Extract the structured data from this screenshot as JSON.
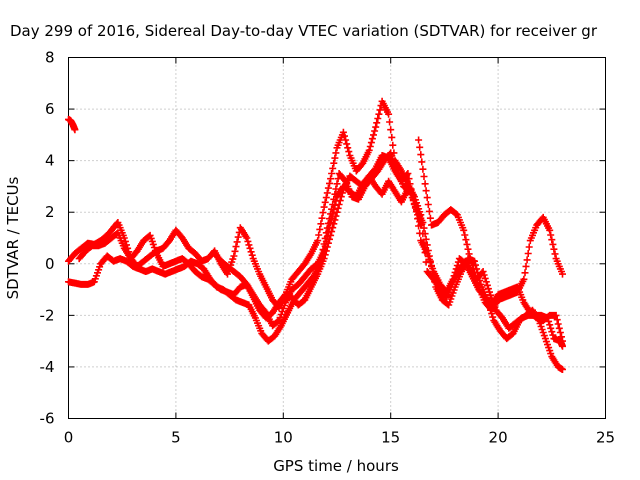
{
  "chart_data": {
    "type": "scatter",
    "title": "Day 299 of 2016, Sidereal Day-to-day VTEC variation (SDTVAR) for receiver gr",
    "xlabel": "GPS time / hours",
    "ylabel": "SDTVAR / TECUs",
    "xlim": [
      0,
      25
    ],
    "ylim": [
      -6,
      8
    ],
    "xticks": [
      0,
      5,
      10,
      15,
      20,
      25
    ],
    "yticks": [
      -6,
      -4,
      -2,
      0,
      2,
      4,
      6,
      8
    ],
    "xtick_labels": [
      "0",
      "5",
      "10",
      "15",
      "20",
      "25"
    ],
    "ytick_labels": [
      "-6",
      "-4",
      "-2",
      "0",
      "2",
      "4",
      "6",
      "8"
    ],
    "grid": true,
    "marker": "+",
    "marker_color": "#ff0000",
    "series": [
      {
        "x": [
          0.0,
          0.1,
          0.2,
          0.3
        ],
        "y": [
          5.6,
          5.55,
          5.4,
          5.2
        ]
      },
      {
        "x": [
          0.0,
          0.3,
          0.6,
          0.9,
          1.2,
          1.5,
          1.8,
          2.1,
          2.3,
          2.6,
          2.9,
          3.2,
          3.5,
          3.8,
          4.1,
          4.4,
          4.7,
          5.0,
          5.3,
          5.6,
          5.9,
          6.2,
          6.5,
          6.8,
          7.1,
          7.4,
          7.7,
          8.0,
          8.3,
          8.6,
          8.9,
          9.2,
          9.5,
          9.8,
          10.1,
          10.4,
          10.7,
          11.0,
          11.3,
          11.6,
          11.9,
          12.2,
          12.5,
          12.8,
          13.1,
          13.4,
          13.7,
          14.0,
          14.3,
          14.6,
          14.9,
          15.2,
          15.5,
          15.8,
          16.1,
          16.4,
          16.7,
          17.0,
          17.3,
          17.6,
          17.9,
          18.2,
          18.5,
          18.8,
          19.1,
          19.4,
          19.7,
          20.0,
          20.3,
          20.6,
          20.9,
          21.2,
          21.5,
          21.8,
          22.1,
          22.4,
          22.7,
          23.0
        ],
        "y": [
          0.1,
          0.4,
          0.6,
          0.8,
          0.75,
          0.9,
          1.1,
          1.4,
          1.6,
          1.0,
          0.2,
          -0.1,
          0.1,
          0.3,
          0.5,
          0.6,
          0.9,
          1.3,
          1.0,
          0.6,
          0.4,
          0.1,
          0.2,
          0.5,
          0.0,
          -0.4,
          0.3,
          1.4,
          1.0,
          0.2,
          -0.4,
          -0.9,
          -1.4,
          -1.7,
          -1.2,
          -0.6,
          -0.3,
          0.0,
          0.4,
          0.9,
          2.2,
          3.3,
          4.5,
          5.1,
          4.2,
          3.6,
          3.9,
          4.4,
          5.3,
          6.3,
          5.8,
          4.0,
          3.6,
          3.1,
          2.6,
          0.9,
          0.4,
          -0.3,
          -0.8,
          -1.1,
          -0.6,
          0.2,
          0.0,
          -0.5,
          -1.0,
          -1.3,
          -1.6,
          -1.2,
          -1.1,
          -1.0,
          -0.9,
          -1.5,
          -1.9,
          -2.1,
          -2.2,
          -2.0,
          -2.0,
          -3.0
        ]
      },
      {
        "x": [
          0.0,
          0.3,
          0.6,
          0.9,
          1.2,
          1.5,
          1.8,
          2.1,
          2.4,
          2.7,
          3.0,
          3.3,
          3.6,
          3.9,
          4.2,
          4.5,
          4.8,
          5.1,
          5.4,
          5.7,
          6.0,
          6.3,
          6.6,
          6.9,
          7.2,
          7.5,
          7.8,
          8.1,
          8.4,
          8.7,
          9.0,
          9.3,
          9.6,
          9.9,
          10.2,
          10.5,
          10.8,
          11.1,
          11.4,
          11.7,
          12.0,
          12.3,
          12.6,
          12.9,
          13.2,
          13.5,
          13.8,
          14.1,
          14.4,
          14.7,
          15.0,
          15.3,
          15.6,
          15.9,
          16.2,
          16.5,
          16.8,
          17.1,
          17.4,
          17.7,
          18.0,
          18.3,
          18.6,
          18.9,
          19.2,
          19.5,
          19.8,
          20.1,
          20.4,
          20.7,
          21.0,
          21.3,
          21.6,
          21.9,
          22.2,
          22.5,
          22.8,
          23.0
        ],
        "y": [
          -0.7,
          -0.75,
          -0.8,
          -0.8,
          -0.7,
          0.0,
          0.3,
          0.1,
          0.2,
          0.1,
          -0.1,
          -0.2,
          -0.3,
          -0.2,
          -0.3,
          -0.4,
          -0.3,
          -0.2,
          -0.1,
          0.1,
          0.0,
          -0.2,
          -0.6,
          -0.9,
          -1.0,
          -1.2,
          -1.4,
          -1.5,
          -1.6,
          -2.1,
          -2.7,
          -3.0,
          -2.8,
          -2.4,
          -1.9,
          -1.4,
          -1.1,
          -0.8,
          -0.5,
          -0.1,
          1.2,
          2.3,
          3.5,
          3.2,
          2.6,
          2.5,
          3.0,
          3.3,
          3.6,
          4.0,
          4.3,
          3.6,
          3.0,
          2.8,
          2.1,
          1.6,
          0.3,
          -0.9,
          -1.4,
          -1.6,
          -0.9,
          -0.3,
          0.2,
          0.1,
          -0.8,
          -1.4,
          -2.2,
          -2.6,
          -2.9,
          -2.7,
          -2.2,
          -2.0,
          -1.8,
          -2.2,
          -2.9,
          -3.6,
          -4.0,
          -4.1
        ]
      },
      {
        "x": [
          0.5,
          0.8,
          1.1,
          1.4,
          1.7,
          2.0,
          2.3,
          2.6,
          2.9,
          3.2,
          3.5,
          3.8,
          4.1,
          4.4,
          4.7,
          5.0,
          5.3,
          5.6,
          5.9,
          6.2,
          6.5,
          6.8,
          7.1,
          7.4,
          7.7,
          8.0,
          8.3,
          8.6,
          8.9,
          9.2,
          9.5,
          9.8,
          10.1,
          10.4,
          10.7,
          11.0,
          11.3,
          11.6,
          11.9,
          12.2,
          12.5,
          12.8,
          13.1,
          13.4,
          13.7,
          14.0,
          14.3,
          14.6,
          14.9,
          15.2,
          15.5,
          15.8,
          16.1,
          16.4,
          16.7,
          17.0,
          17.3,
          17.6,
          17.9,
          18.2,
          18.5,
          18.8,
          19.1,
          19.4,
          19.7,
          20.0,
          20.3,
          20.6,
          20.9,
          21.2,
          21.5,
          21.8,
          22.1,
          22.4,
          22.7,
          23.0
        ],
        "y": [
          0.2,
          0.5,
          0.7,
          0.7,
          0.8,
          1.0,
          1.2,
          0.6,
          0.2,
          0.5,
          0.9,
          1.1,
          0.4,
          -0.1,
          0.0,
          0.1,
          0.2,
          0.0,
          -0.3,
          -0.5,
          -0.6,
          -0.8,
          -1.0,
          -1.1,
          -1.2,
          -0.9,
          -0.8,
          -1.2,
          -1.6,
          -1.9,
          -2.4,
          -2.2,
          -1.5,
          -1.0,
          -0.8,
          -0.5,
          -0.2,
          0.0,
          0.5,
          1.6,
          2.6,
          3.0,
          2.8,
          2.6,
          3.1,
          3.4,
          3.0,
          2.7,
          3.2,
          2.8,
          2.4,
          2.9,
          2.6,
          1.9,
          -0.3,
          -0.6,
          -1.0,
          -1.3,
          -0.7,
          -0.2,
          0.1,
          -0.4,
          -0.9,
          -1.5,
          -1.8,
          -1.4,
          -1.3,
          -1.2,
          -1.1,
          -0.6,
          0.9,
          1.5,
          1.8,
          1.3,
          0.2,
          -0.4
        ]
      },
      {
        "x": [
          6.8,
          7.1,
          7.4,
          7.7,
          8.0,
          8.3,
          8.6,
          8.9,
          9.2,
          9.5,
          9.8,
          10.1,
          10.4,
          10.7,
          11.0,
          11.3,
          11.6,
          11.9,
          12.2,
          12.5,
          12.8,
          13.1,
          13.4,
          13.7,
          14.0,
          14.3,
          14.6,
          14.9,
          15.2,
          15.5,
          15.8,
          16.1,
          16.4
        ],
        "y": [
          0.4,
          0.1,
          -0.1,
          -0.3,
          -0.5,
          -0.8,
          -1.3,
          -1.8,
          -2.1,
          -1.9,
          -1.5,
          -1.2,
          -1.3,
          -1.6,
          -1.4,
          -0.9,
          -0.4,
          0.2,
          1.1,
          2.0,
          2.9,
          3.4,
          3.2,
          3.0,
          3.4,
          3.7,
          4.2,
          4.1,
          3.6,
          3.2,
          3.5,
          2.3,
          1.5
        ]
      },
      {
        "x": [
          16.3,
          16.6,
          16.9,
          17.2,
          17.5,
          17.8,
          18.1,
          18.4,
          18.7,
          19.0,
          19.3,
          19.6,
          19.9,
          20.2,
          20.5,
          20.8,
          21.1,
          21.4,
          21.7,
          22.0,
          22.3,
          22.6,
          22.9,
          23.0
        ],
        "y": [
          4.8,
          3.1,
          1.5,
          1.6,
          1.9,
          2.1,
          1.9,
          1.3,
          0.2,
          -0.6,
          -0.3,
          -1.1,
          -1.8,
          -2.1,
          -2.5,
          -2.3,
          -2.1,
          -2.0,
          -2.0,
          -2.0,
          -2.1,
          -2.9,
          -3.0,
          -3.2
        ]
      }
    ]
  }
}
